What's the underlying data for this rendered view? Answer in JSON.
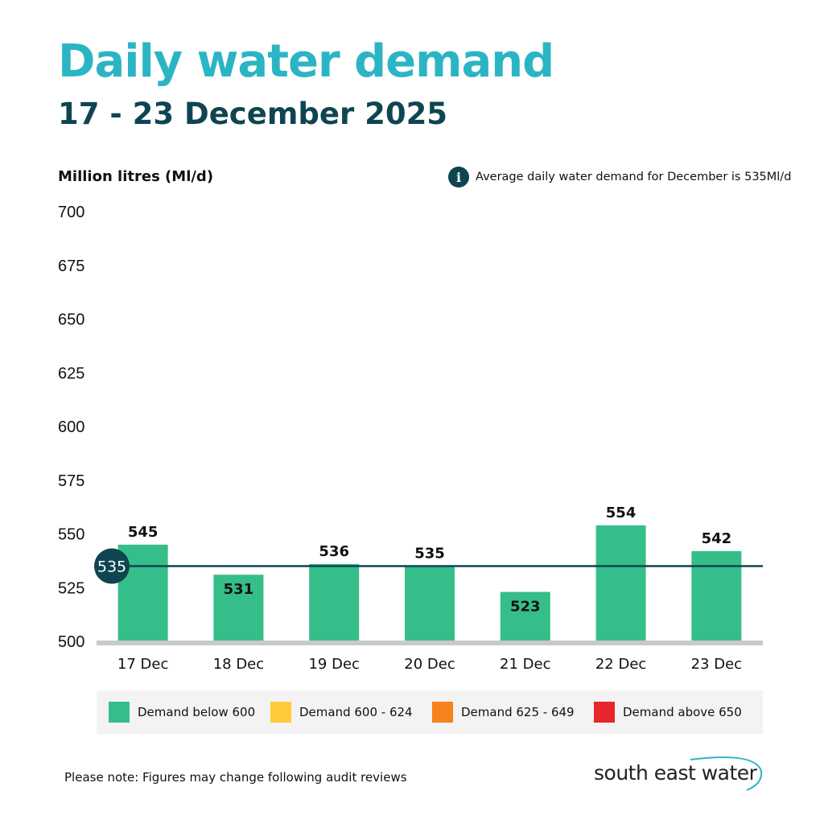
{
  "title": "Daily water demand",
  "subtitle": "17 - 23 December 2025",
  "note": {
    "icon": "info-icon",
    "icon_glyph": "i",
    "text": "Average daily water demand for December  is 535Ml/d"
  },
  "footnote": "Please note: Figures may change following audit reviews",
  "logo": "south east water",
  "chart_data": {
    "type": "bar",
    "ylabel": "Million litres (Ml/d)",
    "ylim": [
      500,
      700
    ],
    "yticks": [
      500,
      525,
      550,
      575,
      600,
      625,
      650,
      675,
      700
    ],
    "categories": [
      "17 Dec",
      "18 Dec",
      "19 Dec",
      "20 Dec",
      "21 Dec",
      "22 Dec",
      "23 Dec"
    ],
    "values": [
      545,
      531,
      536,
      535,
      523,
      554,
      542
    ],
    "bar_color": "#35be8a",
    "average": {
      "value": 535,
      "label": "535",
      "color": "#0e4550"
    },
    "grid": false,
    "legend_position": "bottom",
    "legend": [
      {
        "label": "Demand below 600",
        "color": "#35be8a"
      },
      {
        "label": "Demand 600 - 624",
        "color": "#ffc93c"
      },
      {
        "label": "Demand 625 - 649",
        "color": "#f7821b"
      },
      {
        "label": "Demand above 650",
        "color": "#e8262b"
      }
    ]
  }
}
